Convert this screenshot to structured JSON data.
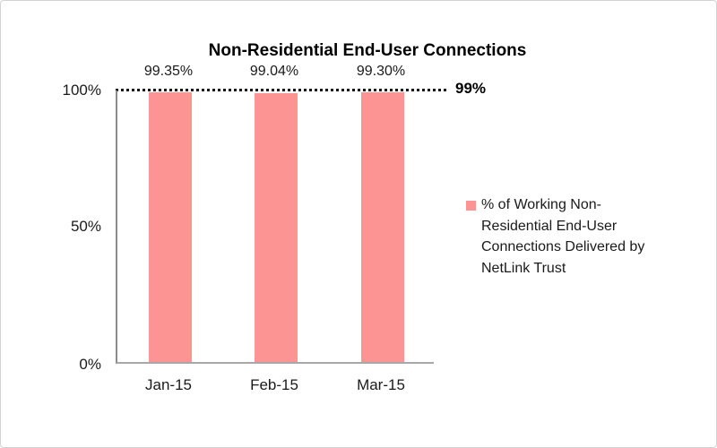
{
  "frame": {
    "border_color": "#d3d3d3",
    "background": "#ffffff"
  },
  "chart_data": {
    "type": "bar",
    "title": "Non-Residential End-User Connections",
    "categories": [
      "Jan-15",
      "Feb-15",
      "Mar-15"
    ],
    "series": [
      {
        "name": "% of Working Non-Residential End-User Connections Delivered by NetLink Trust",
        "values": [
          99.35,
          99.04,
          99.3
        ]
      }
    ],
    "data_labels": [
      "99.35%",
      "99.04%",
      "99.30%"
    ],
    "ylim": [
      0,
      100
    ],
    "y_tick_values": [
      100,
      50,
      0
    ],
    "y_tick_labels": [
      "100%",
      "50%",
      "0%"
    ],
    "target_line": {
      "value": 99,
      "label": "99%",
      "style": "dotted",
      "color": "#161616"
    },
    "legend_position": "right",
    "grid": false,
    "bar_color": "#fc9494",
    "axis_color": "#8c8c8c"
  }
}
